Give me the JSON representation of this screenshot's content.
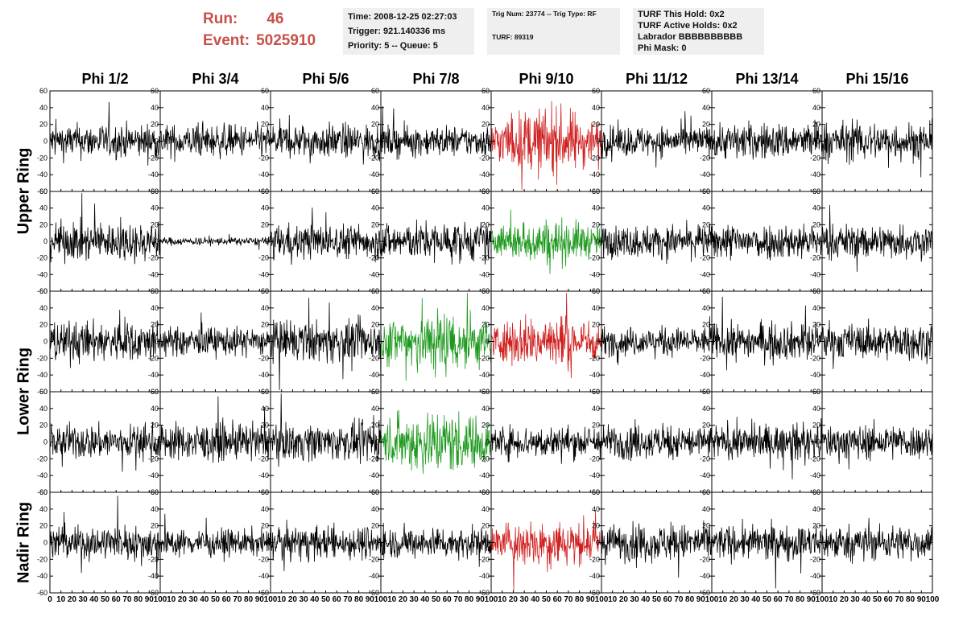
{
  "header": {
    "run_label": "Run:",
    "run_value": "46",
    "event_label": "Event:",
    "event_value": "5025910",
    "info1": [
      "Time: 2008-12-25 02:27:03",
      "Trigger: 921.140336 ms",
      "Priority: 5 -- Queue: 5"
    ],
    "info2": [
      "Trig Num: 23774 -- Trig Type: RF",
      "TURF: 89319"
    ],
    "info3": [
      "TURF This Hold: 0x2",
      "TURF Active Holds: 0x2",
      "Labrador BBBBBBBBBB",
      "Phi Mask: 0"
    ]
  },
  "chart_data": {
    "type": "line",
    "title": "",
    "column_labels": [
      "Phi 1/2",
      "Phi 3/4",
      "Phi 5/6",
      "Phi 7/8",
      "Phi 9/10",
      "Phi 11/12",
      "Phi 13/14",
      "Phi 15/16"
    ],
    "row_labels": [
      {
        "text": "Upper Ring",
        "rows": [
          0,
          1
        ]
      },
      {
        "text": "Lower Ring",
        "rows": [
          2,
          3
        ]
      },
      {
        "text": "Nadir Ring",
        "rows": [
          4
        ]
      }
    ],
    "xlim": [
      0,
      100
    ],
    "ylim": [
      -60,
      60
    ],
    "x_ticks": [
      0,
      10,
      20,
      30,
      40,
      50,
      60,
      70,
      80,
      90,
      100
    ],
    "y_ticks": [
      -60,
      -40,
      -20,
      0,
      20,
      40,
      60
    ],
    "colors": {
      "default": "#000000",
      "red": "#d02020",
      "green": "#1f9a1f"
    },
    "note": "Each panel is a noisy waveform oscillating around 0; amplitude gives typical |y| extent.",
    "panels": [
      [
        {
          "amp": 17,
          "color": "default"
        },
        {
          "amp": 16,
          "color": "default"
        },
        {
          "amp": 17,
          "color": "default"
        },
        {
          "amp": 15,
          "color": "default"
        },
        {
          "amp": 26,
          "color": "red"
        },
        {
          "amp": 15,
          "color": "default"
        },
        {
          "amp": 18,
          "color": "default"
        },
        {
          "amp": 19,
          "color": "default"
        }
      ],
      [
        {
          "amp": 19,
          "color": "default"
        },
        {
          "amp": 4,
          "color": "default"
        },
        {
          "amp": 17,
          "color": "default"
        },
        {
          "amp": 19,
          "color": "default"
        },
        {
          "amp": 18,
          "color": "green"
        },
        {
          "amp": 16,
          "color": "default"
        },
        {
          "amp": 18,
          "color": "default"
        },
        {
          "amp": 17,
          "color": "default"
        }
      ],
      [
        {
          "amp": 20,
          "color": "default"
        },
        {
          "amp": 14,
          "color": "default"
        },
        {
          "amp": 20,
          "color": "default"
        },
        {
          "amp": 27,
          "color": "green"
        },
        {
          "amp": 22,
          "color": "red"
        },
        {
          "amp": 14,
          "color": "default"
        },
        {
          "amp": 18,
          "color": "default"
        },
        {
          "amp": 17,
          "color": "default"
        }
      ],
      [
        {
          "amp": 17,
          "color": "default"
        },
        {
          "amp": 18,
          "color": "default"
        },
        {
          "amp": 18,
          "color": "default"
        },
        {
          "amp": 26,
          "color": "green"
        },
        {
          "amp": 16,
          "color": "default"
        },
        {
          "amp": 17,
          "color": "default"
        },
        {
          "amp": 17,
          "color": "default"
        },
        {
          "amp": 17,
          "color": "default"
        }
      ],
      [
        {
          "amp": 17,
          "color": "default"
        },
        {
          "amp": 13,
          "color": "default"
        },
        {
          "amp": 16,
          "color": "default"
        },
        {
          "amp": 15,
          "color": "default"
        },
        {
          "amp": 20,
          "color": "red"
        },
        {
          "amp": 18,
          "color": "default"
        },
        {
          "amp": 17,
          "color": "default"
        },
        {
          "amp": 17,
          "color": "default"
        }
      ]
    ]
  }
}
